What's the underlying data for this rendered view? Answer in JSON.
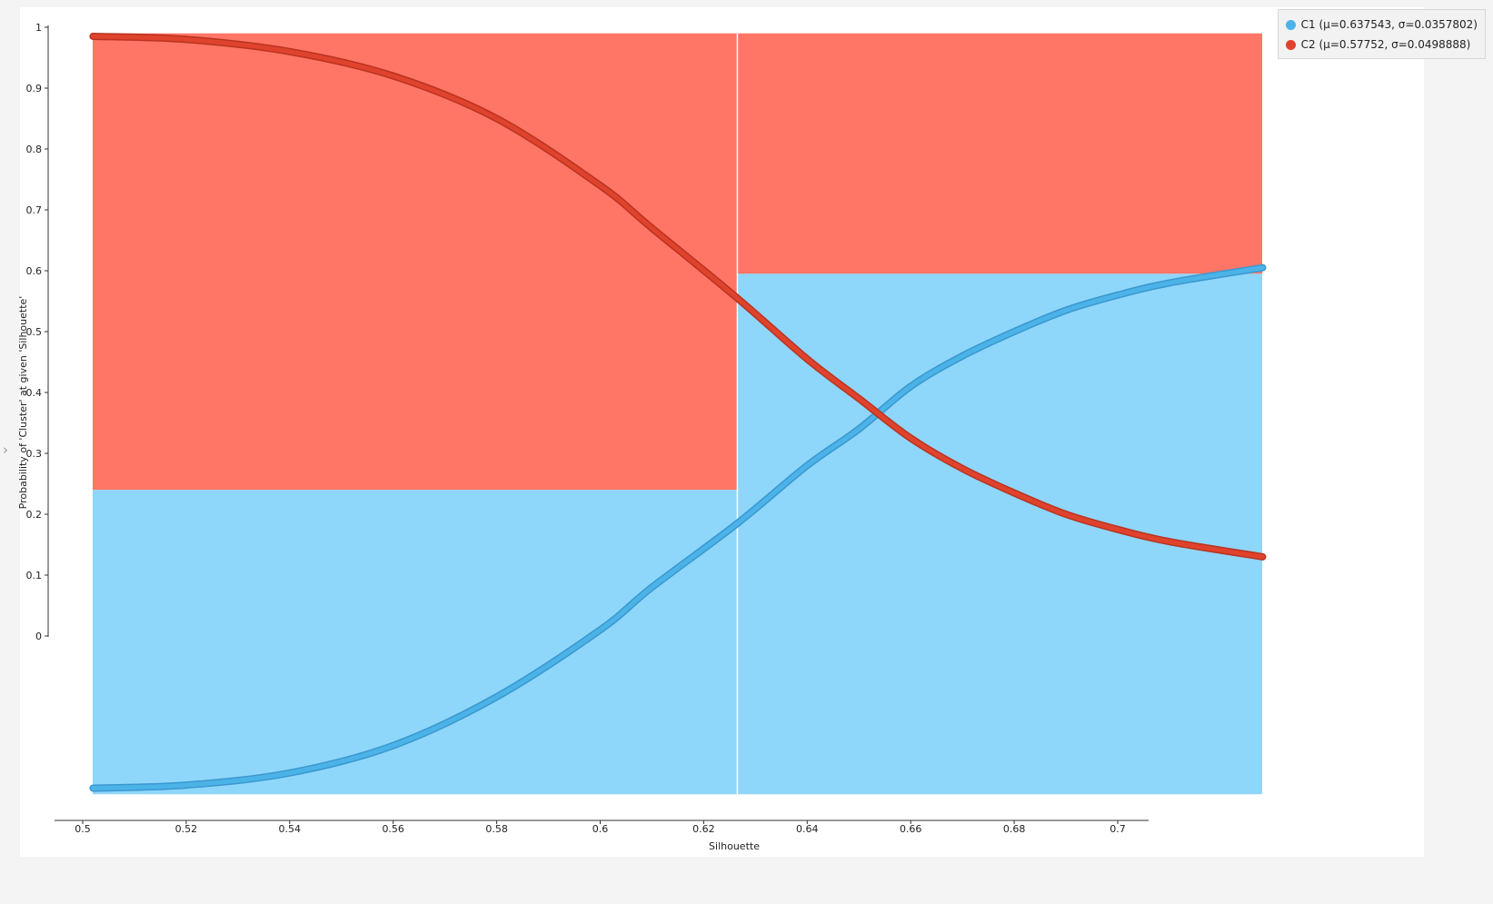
{
  "chart_data": {
    "type": "area",
    "xlabel": "Silhouette",
    "ylabel": "Probability of 'Cluster' at given 'Silhouette'",
    "xlim": [
      0.49,
      0.725
    ],
    "ylim": [
      -0.26,
      1.0
    ],
    "x_ticks": [
      "0.5",
      "0.52",
      "0.54",
      "0.56",
      "0.58",
      "0.6",
      "0.62",
      "0.64",
      "0.66",
      "0.68",
      "0.7"
    ],
    "y_ticks": [
      "0",
      "0.1",
      "0.2",
      "0.3",
      "0.4",
      "0.5",
      "0.6",
      "0.7",
      "0.8",
      "0.9",
      "1"
    ],
    "legend_position": "top-right",
    "series": [
      {
        "name": "C1 (μ=0.637543, σ=0.0357802)",
        "color": "#4bb3e8",
        "fill_color": "#8fd6fb",
        "x": [
          0.502,
          0.52,
          0.54,
          0.56,
          0.58,
          0.6,
          0.61,
          0.6265,
          0.64,
          0.65,
          0.66,
          0.67,
          0.68,
          0.69,
          0.7,
          0.71,
          0.728
        ],
        "y": [
          -0.25,
          -0.245,
          -0.225,
          -0.18,
          -0.1,
          0.01,
          0.08,
          0.185,
          0.28,
          0.34,
          0.41,
          0.46,
          0.5,
          0.535,
          0.56,
          0.58,
          0.605
        ]
      },
      {
        "name": "C2 (μ=0.57752, σ=0.0498888)",
        "color": "#e0432d",
        "fill_color": "#ff7566",
        "x": [
          0.502,
          0.52,
          0.54,
          0.56,
          0.58,
          0.6,
          0.61,
          0.6265,
          0.64,
          0.65,
          0.66,
          0.67,
          0.68,
          0.69,
          0.7,
          0.71,
          0.728
        ],
        "y": [
          0.985,
          0.98,
          0.96,
          0.92,
          0.85,
          0.74,
          0.67,
          0.555,
          0.455,
          0.39,
          0.325,
          0.275,
          0.235,
          0.2,
          0.175,
          0.155,
          0.13
        ]
      }
    ],
    "histogram": {
      "bins": [
        {
          "x_start": 0.502,
          "x_end": 0.6265,
          "C1_top": 0.24,
          "C2_top": 0.99
        },
        {
          "x_start": 0.6265,
          "x_end": 0.728,
          "C1_top": 0.595,
          "C2_top": 0.99
        }
      ],
      "bottom": -0.26
    }
  }
}
